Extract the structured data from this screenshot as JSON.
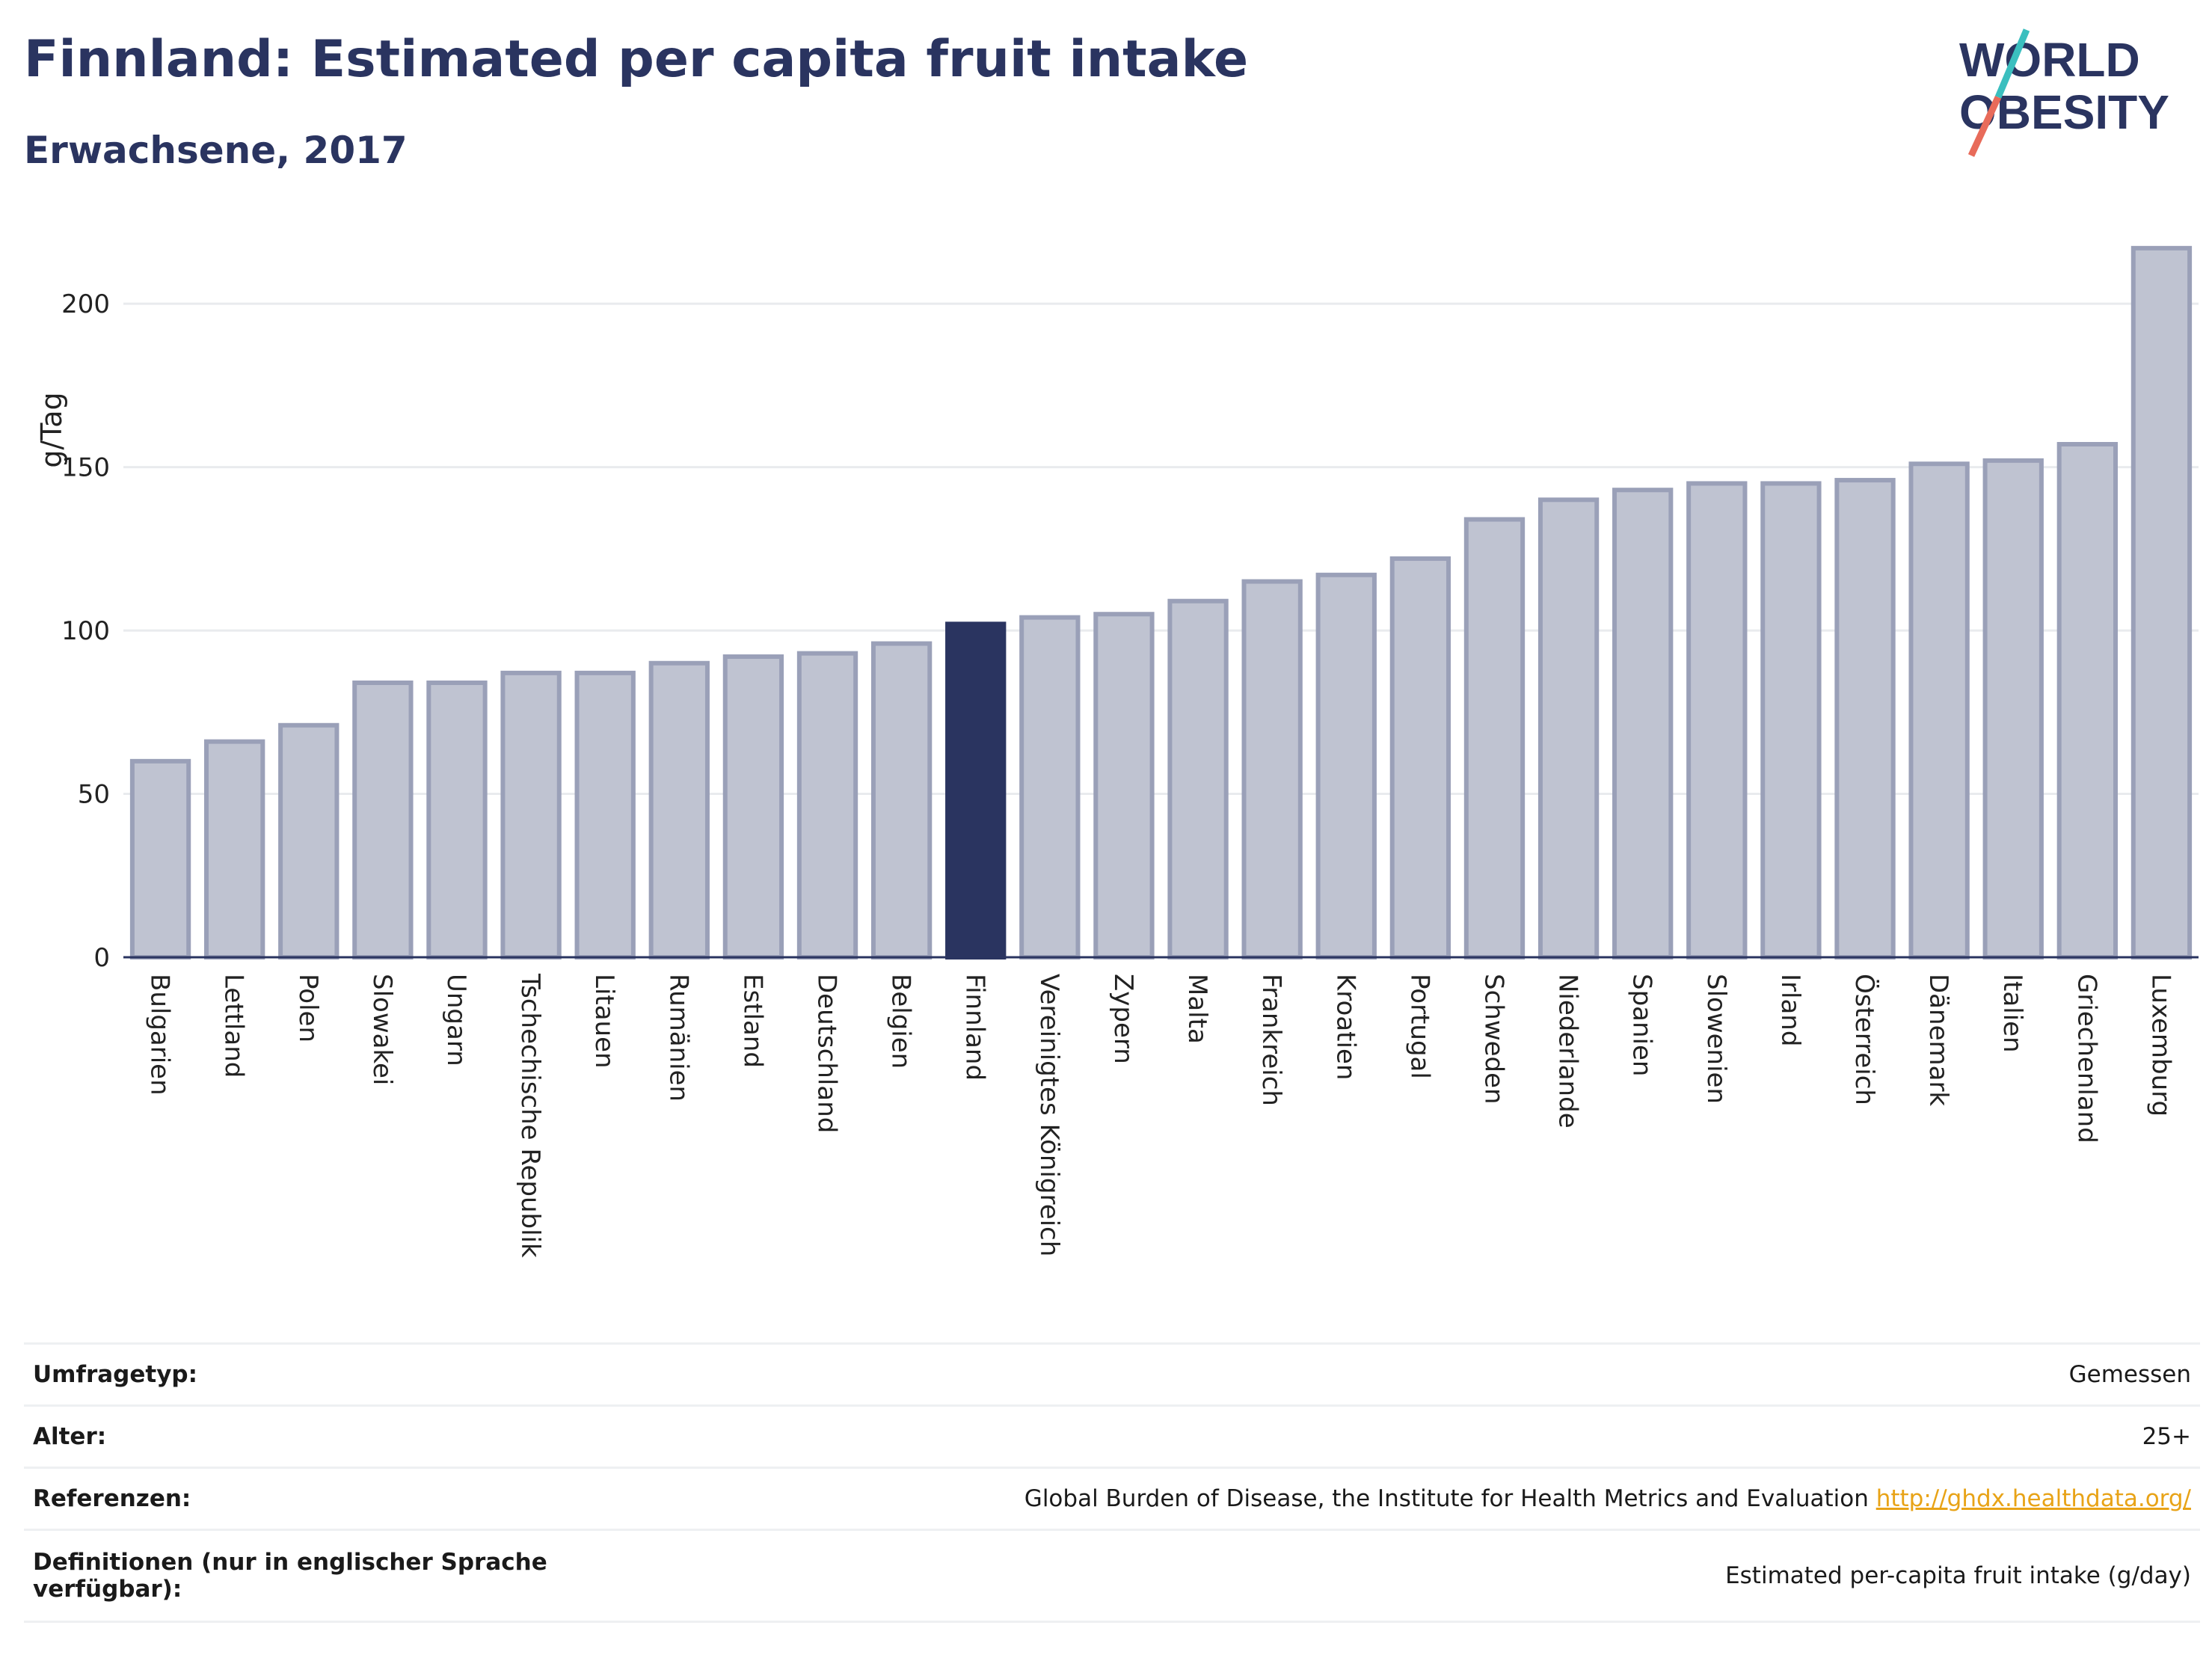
{
  "header": {
    "title": "Finnland: Estimated per capita fruit intake",
    "subtitle": "Erwachsene, 2017"
  },
  "logo": {
    "line1": "WORLD",
    "line2": "OBESITY",
    "colors": {
      "text": "#2a3460",
      "slash_top": "#3bbfbf",
      "slash_bottom": "#e86b5a"
    }
  },
  "chart_data": {
    "type": "bar",
    "title": "Finnland: Estimated per capita fruit intake",
    "subtitle": "Erwachsene, 2017",
    "ylabel": "g/Tag",
    "xlabel": "",
    "ylim": [
      0,
      222
    ],
    "yticks": [
      0,
      50,
      100,
      150,
      200
    ],
    "grid": true,
    "highlight": "Finnland",
    "colors": {
      "bar": "#bfc3d1",
      "bar_border": "#9aa0b8",
      "highlight": "#2a3460"
    },
    "categories": [
      "Bulgarien",
      "Lettland",
      "Polen",
      "Slowakei",
      "Ungarn",
      "Tschechische Republik",
      "Litauen",
      "Rumänien",
      "Estland",
      "Deutschland",
      "Belgien",
      "Finnland",
      "Vereinigtes Königreich",
      "Zypern",
      "Malta",
      "Frankreich",
      "Kroatien",
      "Portugal",
      "Schweden",
      "Niederlande",
      "Spanien",
      "Slowenien",
      "Irland",
      "Österreich",
      "Dänemark",
      "Italien",
      "Griechenland",
      "Luxemburg"
    ],
    "values": [
      60,
      66,
      71,
      84,
      84,
      87,
      87,
      90,
      92,
      93,
      96,
      102,
      104,
      105,
      109,
      115,
      117,
      122,
      134,
      140,
      143,
      145,
      145,
      146,
      151,
      152,
      157,
      217
    ]
  },
  "info_table": [
    {
      "key": "Umfragetyp:",
      "value": "Gemessen"
    },
    {
      "key": "Alter:",
      "value": "25+"
    },
    {
      "key": "Referenzen:",
      "value": "Global Burden of Disease, the Institute for Health Metrics and Evaluation",
      "link": "http://ghdx.healthdata.org/"
    },
    {
      "key": "Definitionen (nur in englischer Sprache verfügbar):",
      "value": "Estimated per-capita fruit intake (g/day)"
    }
  ]
}
